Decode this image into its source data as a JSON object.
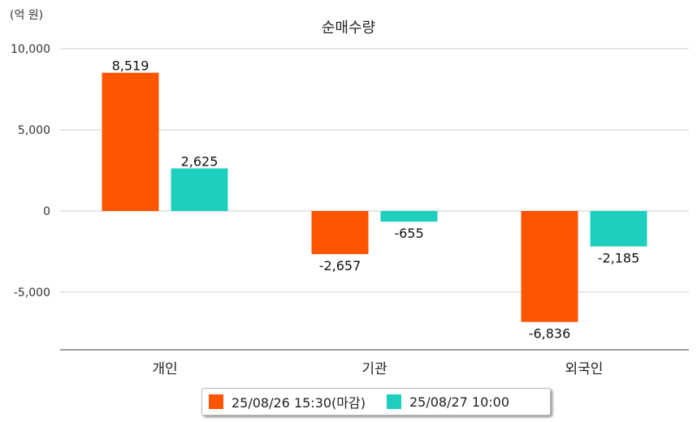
{
  "chart_data": {
    "type": "bar",
    "title": "순매수량",
    "unit_label": "(억 원)",
    "categories": [
      "개인",
      "기관",
      "외국인"
    ],
    "series": [
      {
        "name": "25/08/26 15:30(마감)",
        "color": "#ff5500",
        "values": [
          8519,
          -2657,
          -6836
        ]
      },
      {
        "name": "25/08/27 10:00",
        "color": "#1ecfbf",
        "values": [
          2625,
          -655,
          -2185
        ]
      }
    ],
    "value_labels": [
      [
        "8,519",
        "-2,657",
        "-6,836"
      ],
      [
        "2,625",
        "-655",
        "-2,185"
      ]
    ],
    "ylim": [
      -8500,
      10000
    ],
    "yticks": [
      10000,
      5000,
      0,
      -5000
    ],
    "ytick_labels": [
      "10,000",
      "5,000",
      "0",
      "-5,000"
    ],
    "grid": true,
    "legend_position": "bottom"
  }
}
